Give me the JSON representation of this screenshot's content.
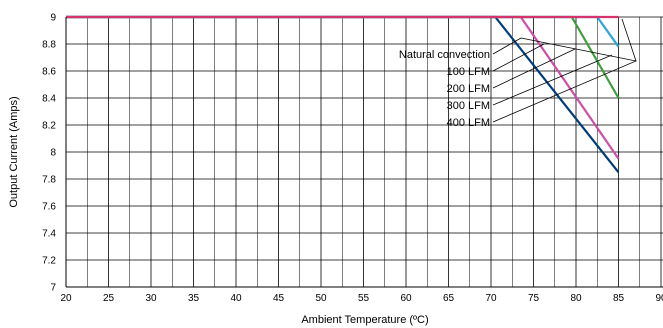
{
  "chart_data": {
    "type": "line",
    "title": "",
    "xlabel": "Ambient Temperature (ºC)",
    "ylabel": "Output Current (Amps)",
    "xlim": [
      20,
      90
    ],
    "ylim": [
      7,
      9
    ],
    "x_ticks": [
      "20",
      "25",
      "30",
      "35",
      "40",
      "45",
      "50",
      "55",
      "60",
      "65",
      "70",
      "75",
      "80",
      "85",
      "90"
    ],
    "y_ticks": [
      "7",
      "7.2",
      "7.4",
      "7.6",
      "7.8",
      "8",
      "8.2",
      "8.4",
      "8.6",
      "8.8",
      "9"
    ],
    "grid": true,
    "series": [
      {
        "name": "Natural convection",
        "color": "#003d7a",
        "x": [
          20,
          70.5,
          85
        ],
        "y": [
          9,
          9,
          7.85
        ]
      },
      {
        "name": "100 LFM",
        "color": "#cc4fa8",
        "x": [
          20,
          73.5,
          85
        ],
        "y": [
          9,
          9,
          7.95
        ]
      },
      {
        "name": "200 LFM",
        "color": "#3c9e3c",
        "x": [
          20,
          79.5,
          85
        ],
        "y": [
          9,
          9,
          8.4
        ]
      },
      {
        "name": "300 LFM",
        "color": "#2aa7d6",
        "x": [
          20,
          82.5,
          85
        ],
        "y": [
          9,
          9,
          8.78
        ]
      },
      {
        "name": "400 LFM",
        "color": "#d6336c",
        "x": [
          20,
          85
        ],
        "y": [
          9,
          9
        ]
      }
    ]
  }
}
